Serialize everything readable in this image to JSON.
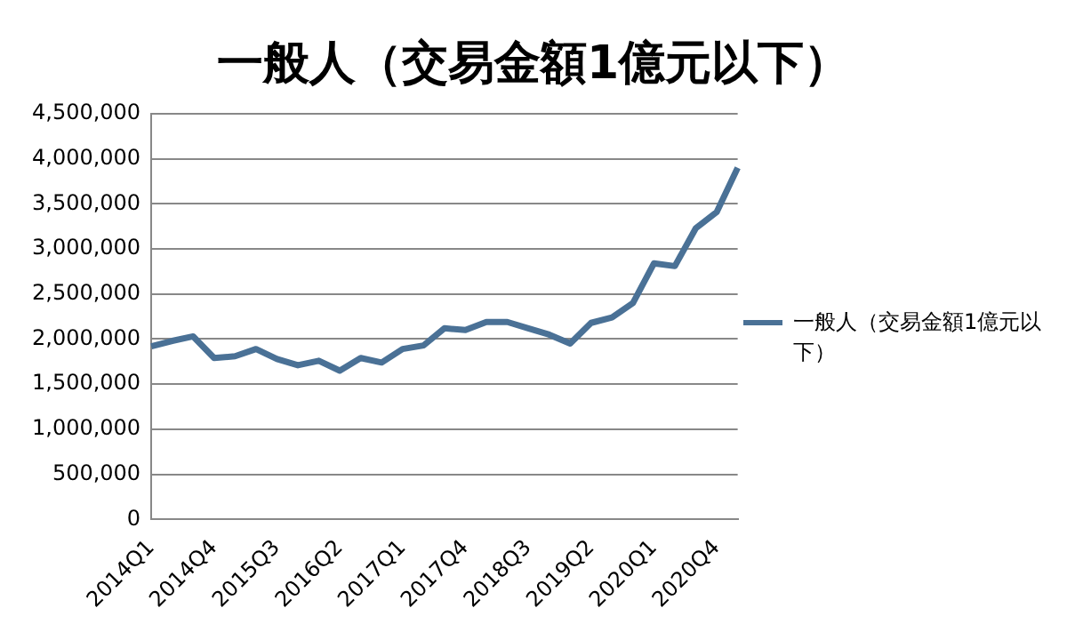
{
  "chart_data": {
    "type": "line",
    "title": "一般人（交易金額1億元以下）",
    "categories": [
      "2014Q1",
      null,
      null,
      "2014Q4",
      null,
      null,
      "2015Q3",
      null,
      null,
      "2016Q2",
      null,
      null,
      "2017Q1",
      null,
      null,
      "2017Q4",
      null,
      null,
      "2018Q3",
      null,
      null,
      "2019Q2",
      null,
      null,
      "2020Q1",
      null,
      null,
      "2020Q4",
      null
    ],
    "series": [
      {
        "name": "一般人（交易金額1億元以下）",
        "color": "#4a7196",
        "values": [
          1920000,
          1980000,
          2030000,
          1790000,
          1810000,
          1890000,
          1780000,
          1710000,
          1760000,
          1650000,
          1790000,
          1740000,
          1890000,
          1930000,
          2120000,
          2100000,
          2190000,
          2190000,
          2120000,
          2050000,
          1950000,
          2180000,
          2240000,
          2400000,
          2840000,
          2810000,
          3230000,
          3410000,
          3900000
        ]
      }
    ],
    "ylim": [
      0,
      4500000
    ],
    "yticks": [
      0,
      {
        "value": 500000,
        "label": "500,000"
      },
      {
        "value": 1000000,
        "label": "1,000,000"
      },
      {
        "value": 1500000,
        "label": "1,500,000"
      },
      {
        "value": 2000000,
        "label": "2,000,000"
      },
      {
        "value": 2500000,
        "label": "2,500,000"
      },
      {
        "value": 3000000,
        "label": "3,000,000"
      },
      {
        "value": 3500000,
        "label": "3,500,000"
      },
      {
        "value": 4000000,
        "label": "4,000,000"
      },
      {
        "value": 4500000,
        "label": "4,500,000"
      }
    ],
    "grid": "y",
    "legend": "right",
    "marker": "none",
    "line_style": "solid"
  }
}
